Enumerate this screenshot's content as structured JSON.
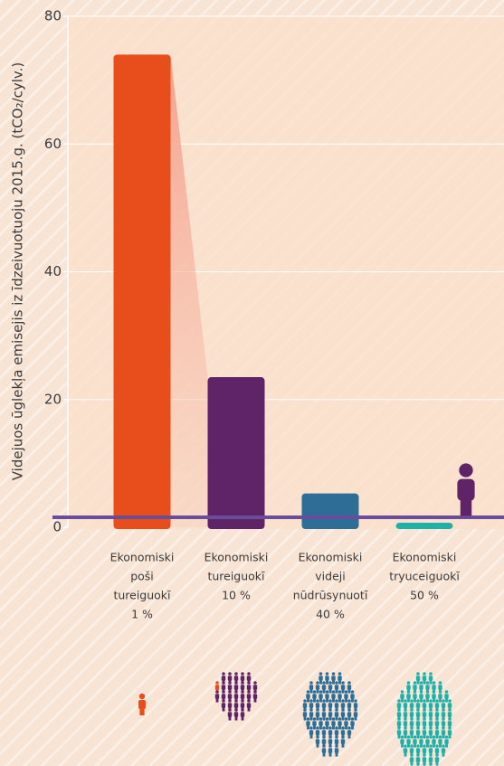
{
  "chart_data": {
    "type": "bar",
    "ylabel": "Videjuos ūglekļa emisejis iz īdzeivuotuoju 2015.g. (tCO₂/cylv.)",
    "categories": [
      [
        "Ekonomiski",
        "poši",
        "tureiguokī",
        "1 %"
      ],
      [
        "Ekonomiski",
        "tureiguokī",
        "10 %"
      ],
      [
        "Ekonomiski",
        "videji",
        "nūdrūsynuotī",
        "40 %"
      ],
      [
        "Ekonomiski",
        "tryuceiguokī",
        "50 %"
      ]
    ],
    "values": [
      74,
      23.5,
      5.3,
      0.7
    ],
    "colors": [
      "#e84e1b",
      "#5f2467",
      "#2e6e96",
      "#1fb0a8"
    ],
    "ylim": [
      0,
      80
    ],
    "yticks": [
      0,
      20,
      40,
      60,
      80
    ],
    "grid": true
  }
}
